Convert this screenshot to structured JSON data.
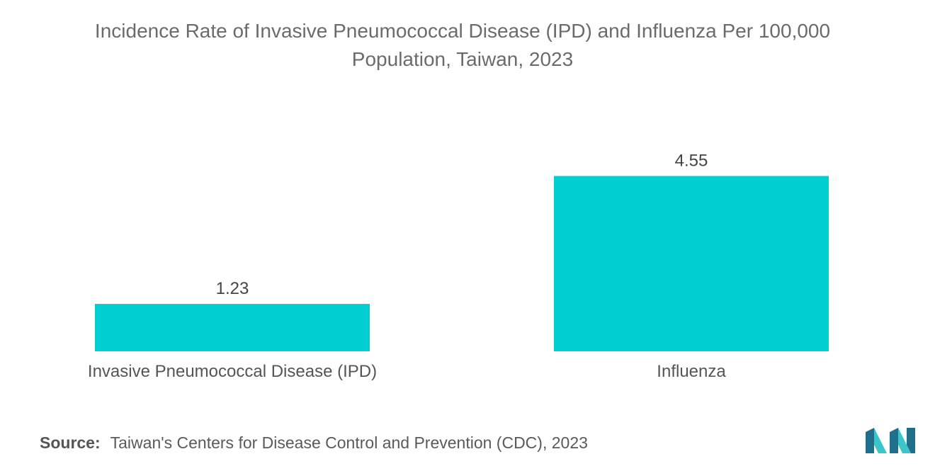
{
  "chart_data": {
    "type": "bar",
    "title_lines": [
      "Incidence Rate of Invasive Pneumococcal Disease (IPD) and Influenza Per 100,000",
      "Population, Taiwan, 2023"
    ],
    "categories": [
      "Invasive Pneumococcal Disease (IPD)",
      "Influenza"
    ],
    "values": [
      1.23,
      4.55
    ],
    "value_labels": [
      "1.23",
      "4.55"
    ],
    "xlabel": "",
    "ylabel": "",
    "ylim": [
      0,
      5
    ],
    "grid": false,
    "legend": "none",
    "bar_color": "#00ced1"
  },
  "source": {
    "label": "Source:",
    "text": "Taiwan's Centers for Disease Control and Prevention (CDC), 2023"
  },
  "logo": {
    "name": "mordor-intelligence-logo",
    "color_dark": "#1f6f8b",
    "color_light": "#3cc5c9"
  }
}
